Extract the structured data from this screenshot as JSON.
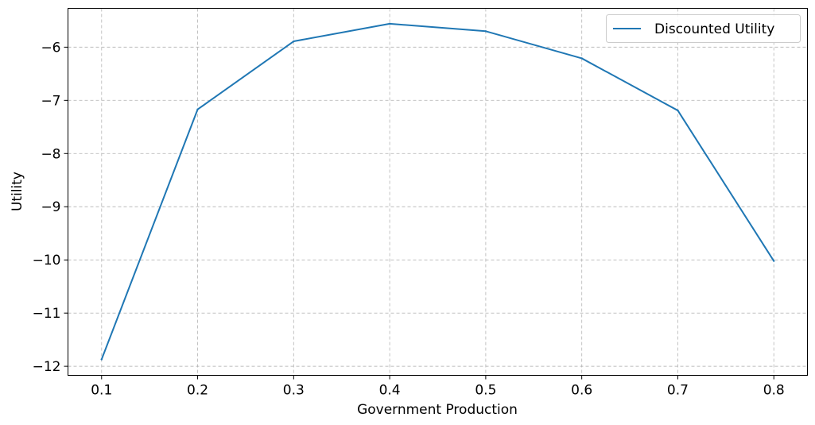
{
  "chart_data": {
    "type": "line",
    "xlabel": "Government Production",
    "ylabel": "Utility",
    "x": [
      0.1,
      0.2,
      0.3,
      0.4,
      0.5,
      0.6,
      0.7,
      0.8
    ],
    "series": [
      {
        "name": "Discounted Utility",
        "color": "#1f77b4",
        "values": [
          -11.87,
          -7.17,
          -5.89,
          -5.56,
          -5.7,
          -6.21,
          -7.19,
          -10.02
        ]
      }
    ],
    "xlim": [
      0.065,
      0.835
    ],
    "ylim": [
      -12.17,
      -5.27
    ],
    "xticks": [
      0.1,
      0.2,
      0.3,
      0.4,
      0.5,
      0.6,
      0.7,
      0.8
    ],
    "xtick_labels": [
      "0.1",
      "0.2",
      "0.3",
      "0.4",
      "0.5",
      "0.6",
      "0.7",
      "0.8"
    ],
    "yticks": [
      -12,
      -11,
      -10,
      -9,
      -8,
      -7,
      -6
    ],
    "ytick_labels": [
      "−12",
      "−11",
      "−10",
      "−9",
      "−8",
      "−7",
      "−6"
    ],
    "grid": true,
    "legend_position": "top-right"
  }
}
